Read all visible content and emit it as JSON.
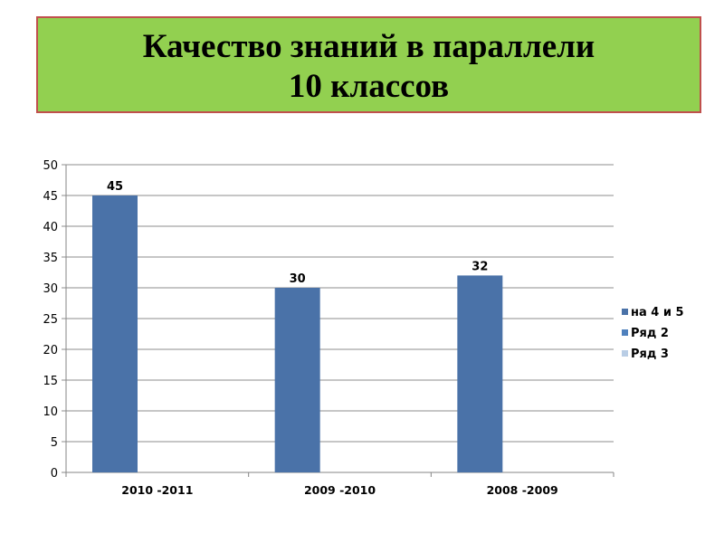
{
  "slide": {
    "title_line1": "Качество знаний в параллели",
    "title_line2": "10 классов",
    "title_bg": "#92d050",
    "title_border": "#c0504d"
  },
  "chart_data": {
    "type": "bar",
    "title": "",
    "xlabel": "",
    "ylabel": "",
    "categories": [
      "2010 -2011",
      "2009 -2010",
      "2008 -2009"
    ],
    "series": [
      {
        "name": "на 4 и 5",
        "values": [
          45,
          30,
          32
        ],
        "color": "#4a72a8"
      },
      {
        "name": "Ряд 2",
        "values": [
          null,
          null,
          null
        ],
        "color": "#4f81bd"
      },
      {
        "name": "Ряд 3",
        "values": [
          null,
          null,
          null
        ],
        "color": "#b9cde5"
      }
    ],
    "data_labels": [
      45,
      30,
      32
    ],
    "ylim": [
      0,
      50
    ],
    "yticks": [
      0,
      5,
      10,
      15,
      20,
      25,
      30,
      35,
      40,
      45,
      50
    ],
    "grid": true,
    "legend_position": "right"
  }
}
